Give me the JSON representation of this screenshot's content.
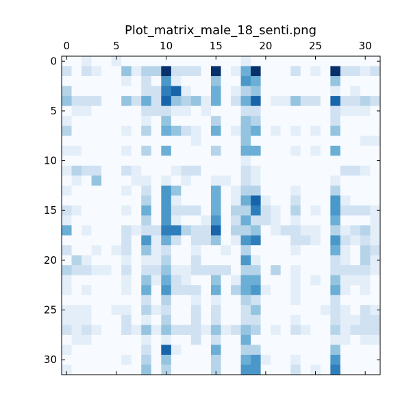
{
  "chart_data": {
    "type": "heatmap",
    "title": "Plot_matrix_male_18_senti.png",
    "xlabel": "",
    "ylabel": "",
    "colormap": "Blues",
    "x_axis_position": "top",
    "x_ticks": [
      0,
      5,
      10,
      15,
      20,
      25,
      30
    ],
    "y_ticks": [
      0,
      5,
      10,
      15,
      20,
      25,
      30
    ],
    "x_tick_labels": [
      "0",
      "5",
      "10",
      "15",
      "20",
      "25",
      "30"
    ],
    "y_tick_labels": [
      "0",
      "5",
      "10",
      "15",
      "20",
      "25",
      "30"
    ],
    "rows": 32,
    "cols": 32,
    "value_range": [
      0,
      1
    ],
    "grid": false,
    "values": [
      [
        0,
        0,
        0.1,
        0,
        0,
        0.1,
        0,
        0,
        0,
        0,
        0,
        0,
        0,
        0,
        0,
        0,
        0,
        0,
        0.1,
        0,
        0,
        0,
        0,
        0,
        0,
        0,
        0,
        0,
        0,
        0,
        0,
        0
      ],
      [
        0.2,
        0,
        0.2,
        0.1,
        0,
        0,
        0.4,
        0.1,
        0.3,
        0.3,
        1,
        0.2,
        0.2,
        0.2,
        0,
        1,
        0,
        0.1,
        0.5,
        1,
        0,
        0,
        0,
        0.2,
        0,
        0.1,
        0,
        1,
        0.2,
        0.2,
        0.1,
        0.2
      ],
      [
        0,
        0,
        0,
        0,
        0,
        0,
        0.1,
        0,
        0.2,
        0,
        0.6,
        0.1,
        0,
        0,
        0,
        0.4,
        0,
        0,
        0.6,
        0.5,
        0,
        0,
        0,
        0,
        0,
        0,
        0,
        0.4,
        0,
        0,
        0,
        0
      ],
      [
        0.3,
        0,
        0,
        0,
        0,
        0,
        0,
        0,
        0.2,
        0.2,
        0.7,
        0.8,
        0.1,
        0,
        0,
        0.5,
        0,
        0.1,
        0.3,
        0.4,
        0,
        0,
        0,
        0,
        0,
        0,
        0,
        0.1,
        0,
        0.1,
        0,
        0
      ],
      [
        0.4,
        0.2,
        0.2,
        0.2,
        0,
        0,
        0.4,
        0.2,
        0.5,
        0.2,
        0.8,
        0.4,
        0.3,
        0.4,
        0.1,
        0.5,
        0,
        0.2,
        0.5,
        0.8,
        0,
        0.1,
        0.1,
        0.4,
        0.2,
        0.2,
        0,
        0.8,
        0.2,
        0.2,
        0.3,
        0.2
      ],
      [
        0,
        0.1,
        0.1,
        0,
        0,
        0,
        0,
        0,
        0.2,
        0.2,
        0.2,
        0.1,
        0.1,
        0,
        0.1,
        0,
        0,
        0,
        0.2,
        0.2,
        0,
        0,
        0,
        0,
        0,
        0,
        0,
        0.2,
        0.1,
        0.1,
        0.1,
        0
      ],
      [
        0.1,
        0,
        0,
        0,
        0,
        0,
        0,
        0,
        0.1,
        0,
        0.4,
        0,
        0,
        0,
        0,
        0.3,
        0,
        0,
        0.4,
        0.3,
        0,
        0,
        0,
        0,
        0,
        0,
        0,
        0.2,
        0,
        0,
        0,
        0
      ],
      [
        0.3,
        0,
        0,
        0,
        0,
        0,
        0.1,
        0,
        0.3,
        0,
        0.5,
        0.4,
        0.2,
        0.1,
        0,
        0.5,
        0,
        0.1,
        0.4,
        0.5,
        0,
        0.1,
        0,
        0.1,
        0,
        0.1,
        0,
        0.4,
        0,
        0,
        0,
        0
      ],
      [
        0,
        0,
        0,
        0,
        0,
        0,
        0,
        0,
        0,
        0,
        0,
        0,
        0,
        0.1,
        0,
        0,
        0,
        0,
        0.4,
        0,
        0,
        0,
        0,
        0,
        0,
        0,
        0,
        0,
        0,
        0,
        0.1,
        0.1
      ],
      [
        0.1,
        0.1,
        0,
        0,
        0,
        0,
        0.1,
        0,
        0.3,
        0,
        0.5,
        0,
        0,
        0,
        0,
        0.3,
        0,
        0,
        0.5,
        0.5,
        0,
        0,
        0,
        0.1,
        0,
        0.1,
        0,
        0.5,
        0,
        0,
        0,
        0
      ],
      [
        0,
        0,
        0,
        0,
        0,
        0,
        0,
        0,
        0,
        0,
        0,
        0,
        0,
        0,
        0,
        0,
        0,
        0,
        0.1,
        0,
        0,
        0,
        0,
        0,
        0,
        0,
        0,
        0,
        0,
        0,
        0,
        0
      ],
      [
        0.1,
        0.3,
        0.2,
        0.2,
        0,
        0,
        0.2,
        0.1,
        0,
        0,
        0,
        0.1,
        0.2,
        0.2,
        0,
        0,
        0,
        0,
        0.2,
        0.1,
        0,
        0,
        0,
        0,
        0,
        0,
        0,
        0,
        0.2,
        0.2,
        0.1,
        0
      ],
      [
        0,
        0.1,
        0,
        0.4,
        0,
        0,
        0,
        0.1,
        0.1,
        0,
        0.1,
        0,
        0.1,
        0,
        0,
        0.1,
        0.1,
        0,
        0.2,
        0.1,
        0,
        0,
        0,
        0,
        0,
        0,
        0,
        0.1,
        0,
        0,
        0,
        0
      ],
      [
        0.1,
        0,
        0,
        0,
        0,
        0,
        0.1,
        0,
        0.2,
        0,
        0.6,
        0.4,
        0,
        0,
        0,
        0.5,
        0,
        0.1,
        0.3,
        0.3,
        0,
        0,
        0,
        0.1,
        0,
        0,
        0,
        0.3,
        0,
        0,
        0,
        0
      ],
      [
        0,
        0,
        0,
        0,
        0,
        0,
        0,
        0,
        0.3,
        0,
        0.6,
        0.1,
        0,
        0,
        0,
        0.5,
        0,
        0.1,
        0.5,
        0.8,
        0.1,
        0,
        0,
        0.2,
        0,
        0,
        0,
        0.6,
        0.1,
        0,
        0,
        0
      ],
      [
        0.2,
        0.1,
        0,
        0,
        0,
        0,
        0.1,
        0,
        0.5,
        0,
        0.6,
        0.2,
        0.2,
        0.2,
        0,
        0.5,
        0,
        0.3,
        0.3,
        0.7,
        0.2,
        0.1,
        0,
        0.3,
        0,
        0.1,
        0,
        0.6,
        0.2,
        0.2,
        0.2,
        0.1
      ],
      [
        0.1,
        0,
        0,
        0,
        0,
        0,
        0,
        0,
        0.3,
        0,
        0.6,
        0.1,
        0,
        0,
        0.1,
        0.6,
        0,
        0.2,
        0.5,
        0.2,
        0.2,
        0.1,
        0,
        0.1,
        0,
        0,
        0,
        0.5,
        0,
        0,
        0,
        0.1
      ],
      [
        0.5,
        0,
        0.1,
        0,
        0,
        0,
        0.2,
        0.1,
        0.2,
        0.2,
        0.7,
        0.7,
        0.3,
        0.2,
        0.2,
        0.8,
        0,
        0.3,
        0.3,
        0.4,
        0,
        0.1,
        0.2,
        0.2,
        0.1,
        0.1,
        0,
        0.3,
        0.1,
        0.2,
        0.3,
        0.1
      ],
      [
        0,
        0,
        0,
        0,
        0,
        0,
        0.2,
        0,
        0.6,
        0.1,
        0.5,
        0.2,
        0,
        0.2,
        0.2,
        0.4,
        0,
        0.1,
        0.6,
        0.7,
        0,
        0,
        0,
        0.2,
        0.2,
        0.1,
        0,
        0.6,
        0.2,
        0.1,
        0.2,
        0.1
      ],
      [
        0.2,
        0,
        0,
        0.1,
        0,
        0.1,
        0.2,
        0,
        0.4,
        0.1,
        0.2,
        0,
        0,
        0.1,
        0,
        0,
        0.1,
        0,
        0.3,
        0,
        0,
        0,
        0,
        0.1,
        0,
        0,
        0,
        0.5,
        0.1,
        0,
        0.3,
        0.2
      ],
      [
        0,
        0.3,
        0.1,
        0,
        0,
        0,
        0.1,
        0,
        0.1,
        0.1,
        0.3,
        0,
        0,
        0.2,
        0,
        0,
        0,
        0,
        0.6,
        0.1,
        0,
        0,
        0,
        0,
        0,
        0,
        0,
        0.2,
        0.1,
        0,
        0.3,
        0.1
      ],
      [
        0.3,
        0.2,
        0.2,
        0.1,
        0.1,
        0,
        0.2,
        0,
        0.2,
        0.2,
        0.4,
        0.1,
        0.1,
        0.2,
        0.2,
        0.2,
        0.2,
        0,
        0.3,
        0.3,
        0,
        0.3,
        0,
        0.1,
        0,
        0,
        0,
        0.2,
        0.2,
        0.2,
        0.2,
        0.1
      ],
      [
        0.1,
        0,
        0,
        0,
        0,
        0,
        0.1,
        0,
        0.4,
        0.1,
        0.5,
        0.2,
        0.1,
        0,
        0,
        0.4,
        0,
        0.1,
        0.5,
        0.5,
        0,
        0,
        0,
        0.1,
        0,
        0.1,
        0,
        0.4,
        0.1,
        0.1,
        0.1,
        0
      ],
      [
        0.1,
        0,
        0.1,
        0,
        0,
        0,
        0.1,
        0,
        0.5,
        0,
        0.6,
        0.2,
        0.2,
        0.2,
        0,
        0.5,
        0,
        0.3,
        0.5,
        0.6,
        0.1,
        0,
        0,
        0.1,
        0,
        0,
        0,
        0.5,
        0.1,
        0,
        0.1,
        0
      ],
      [
        0,
        0,
        0,
        0,
        0,
        0,
        0,
        0,
        0.2,
        0,
        0.3,
        0,
        0,
        0.1,
        0,
        0.1,
        0,
        0,
        0.3,
        0.2,
        0,
        0,
        0,
        0.1,
        0,
        0,
        0,
        0.2,
        0,
        0,
        0,
        0
      ],
      [
        0.1,
        0.1,
        0.1,
        0,
        0,
        0.1,
        0.1,
        0,
        0.3,
        0.1,
        0.2,
        0,
        0,
        0.2,
        0,
        0.2,
        0,
        0,
        0.2,
        0.4,
        0,
        0,
        0,
        0,
        0,
        0,
        0.1,
        0.2,
        0.1,
        0,
        0.2,
        0.1
      ],
      [
        0.1,
        0.1,
        0.1,
        0,
        0,
        0,
        0.2,
        0,
        0.1,
        0,
        0.3,
        0,
        0,
        0.2,
        0,
        0.2,
        0,
        0,
        0.2,
        0.2,
        0,
        0,
        0,
        0.1,
        0,
        0,
        0,
        0.2,
        0.1,
        0.1,
        0.2,
        0.2
      ],
      [
        0.2,
        0.1,
        0.2,
        0.1,
        0,
        0,
        0.2,
        0.1,
        0.4,
        0.1,
        0.4,
        0.2,
        0.2,
        0.2,
        0.1,
        0.4,
        0.1,
        0.2,
        0.4,
        0.3,
        0,
        0.1,
        0,
        0.2,
        0.1,
        0,
        0,
        0.3,
        0.1,
        0.2,
        0.2,
        0.2
      ],
      [
        0,
        0.1,
        0.1,
        0,
        0,
        0,
        0,
        0,
        0.1,
        0,
        0.1,
        0,
        0,
        0.2,
        0,
        0.2,
        0,
        0,
        0.5,
        0,
        0,
        0,
        0,
        0,
        0,
        0,
        0,
        0.1,
        0.1,
        0,
        0.1,
        0.1
      ],
      [
        0.1,
        0,
        0,
        0,
        0,
        0,
        0,
        0,
        0.2,
        0,
        0.8,
        0.1,
        0,
        0,
        0,
        0.5,
        0,
        0,
        0.3,
        0.3,
        0,
        0,
        0,
        0,
        0,
        0,
        0,
        0.4,
        0,
        0,
        0,
        0
      ],
      [
        0,
        0,
        0,
        0,
        0,
        0,
        0.1,
        0,
        0.3,
        0,
        0.4,
        0,
        0,
        0,
        0,
        0.3,
        0,
        0,
        0.5,
        0.6,
        0.1,
        0,
        0,
        0.1,
        0,
        0,
        0,
        0.6,
        0,
        0,
        0,
        0
      ],
      [
        0.1,
        0,
        0,
        0,
        0,
        0,
        0,
        0,
        0.4,
        0,
        0.3,
        0,
        0,
        0,
        0,
        0.3,
        0,
        0,
        0.6,
        0.6,
        0,
        0,
        0,
        0.2,
        0,
        0.1,
        0,
        0.7,
        0,
        0,
        0,
        0
      ]
    ]
  }
}
